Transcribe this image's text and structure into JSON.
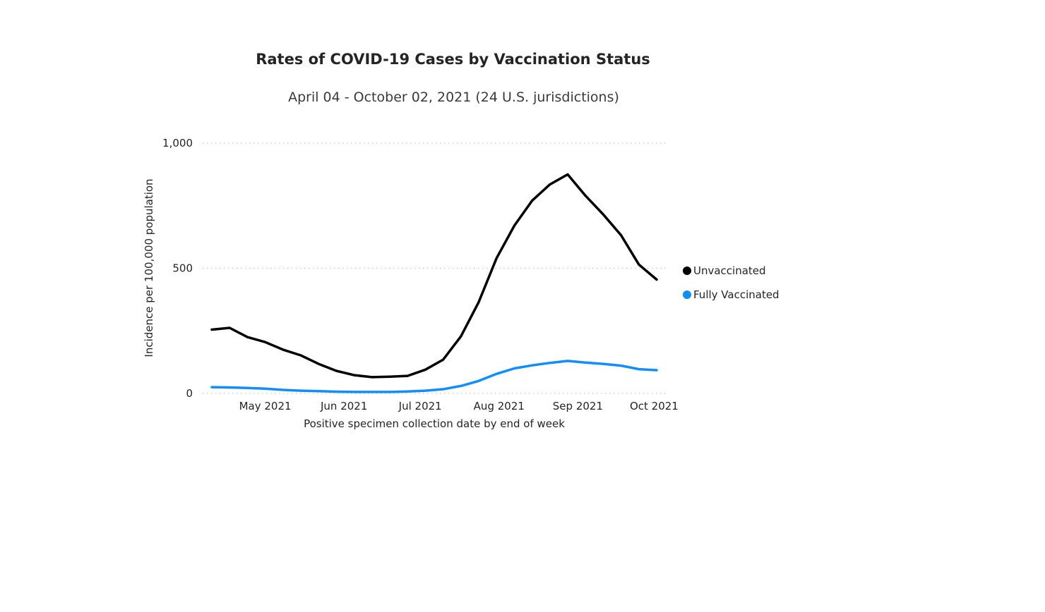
{
  "chart_data": {
    "type": "line",
    "title": "Rates of COVID-19 Cases by Vaccination Status",
    "subtitle": "April 04 - October 02, 2021 (24 U.S. jurisdictions)",
    "xlabel": "Positive specimen collection date by end of week",
    "ylabel": "Incidence per 100,000 population",
    "ylim": [
      0,
      1000
    ],
    "y_ticks": [
      {
        "value": 0,
        "label": "0"
      },
      {
        "value": 500,
        "label": "500"
      },
      {
        "value": 1000,
        "label": "1,000"
      }
    ],
    "x_ticks": [
      {
        "date": "2021-05-01",
        "label": "May 2021"
      },
      {
        "date": "2021-06-01",
        "label": "Jun 2021"
      },
      {
        "date": "2021-07-01",
        "label": "Jul 2021"
      },
      {
        "date": "2021-08-01",
        "label": "Aug 2021"
      },
      {
        "date": "2021-09-01",
        "label": "Sep 2021"
      },
      {
        "date": "2021-10-01",
        "label": "Oct 2021"
      }
    ],
    "grid": "horizontal dotted",
    "legend_position": "right",
    "x": [
      "2021-04-10",
      "2021-04-17",
      "2021-04-24",
      "2021-05-01",
      "2021-05-08",
      "2021-05-15",
      "2021-05-22",
      "2021-05-29",
      "2021-06-05",
      "2021-06-12",
      "2021-06-19",
      "2021-06-26",
      "2021-07-03",
      "2021-07-10",
      "2021-07-17",
      "2021-07-24",
      "2021-07-31",
      "2021-08-07",
      "2021-08-14",
      "2021-08-21",
      "2021-08-28",
      "2021-09-04",
      "2021-09-11",
      "2021-09-18",
      "2021-09-25",
      "2021-10-02"
    ],
    "series": [
      {
        "name": "Unvaccinated",
        "color": "#000000",
        "values": [
          255,
          262,
          225,
          205,
          175,
          152,
          118,
          90,
          73,
          65,
          67,
          70,
          95,
          135,
          228,
          365,
          540,
          670,
          770,
          835,
          875,
          790,
          715,
          632,
          515,
          455
        ]
      },
      {
        "name": "Fully Vaccinated",
        "color": "#118DFF",
        "values": [
          25,
          24,
          22,
          19,
          14,
          11,
          9,
          7,
          6,
          6,
          6,
          8,
          11,
          17,
          30,
          50,
          78,
          100,
          112,
          122,
          130,
          123,
          118,
          111,
          97,
          93
        ]
      }
    ]
  }
}
